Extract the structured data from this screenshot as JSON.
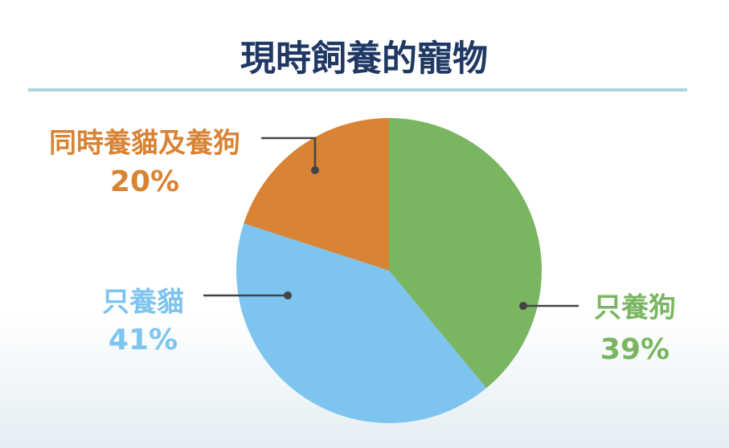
{
  "chart_data": {
    "type": "pie",
    "title": "現時飼養的寵物",
    "categories": [
      "只養狗",
      "只養貓",
      "同時養貓及養狗"
    ],
    "values": [
      39,
      41,
      20
    ],
    "value_labels": [
      "39%",
      "41%",
      "20%"
    ],
    "colors": [
      "#7ab661",
      "#7dc4ef",
      "#d98334"
    ]
  }
}
